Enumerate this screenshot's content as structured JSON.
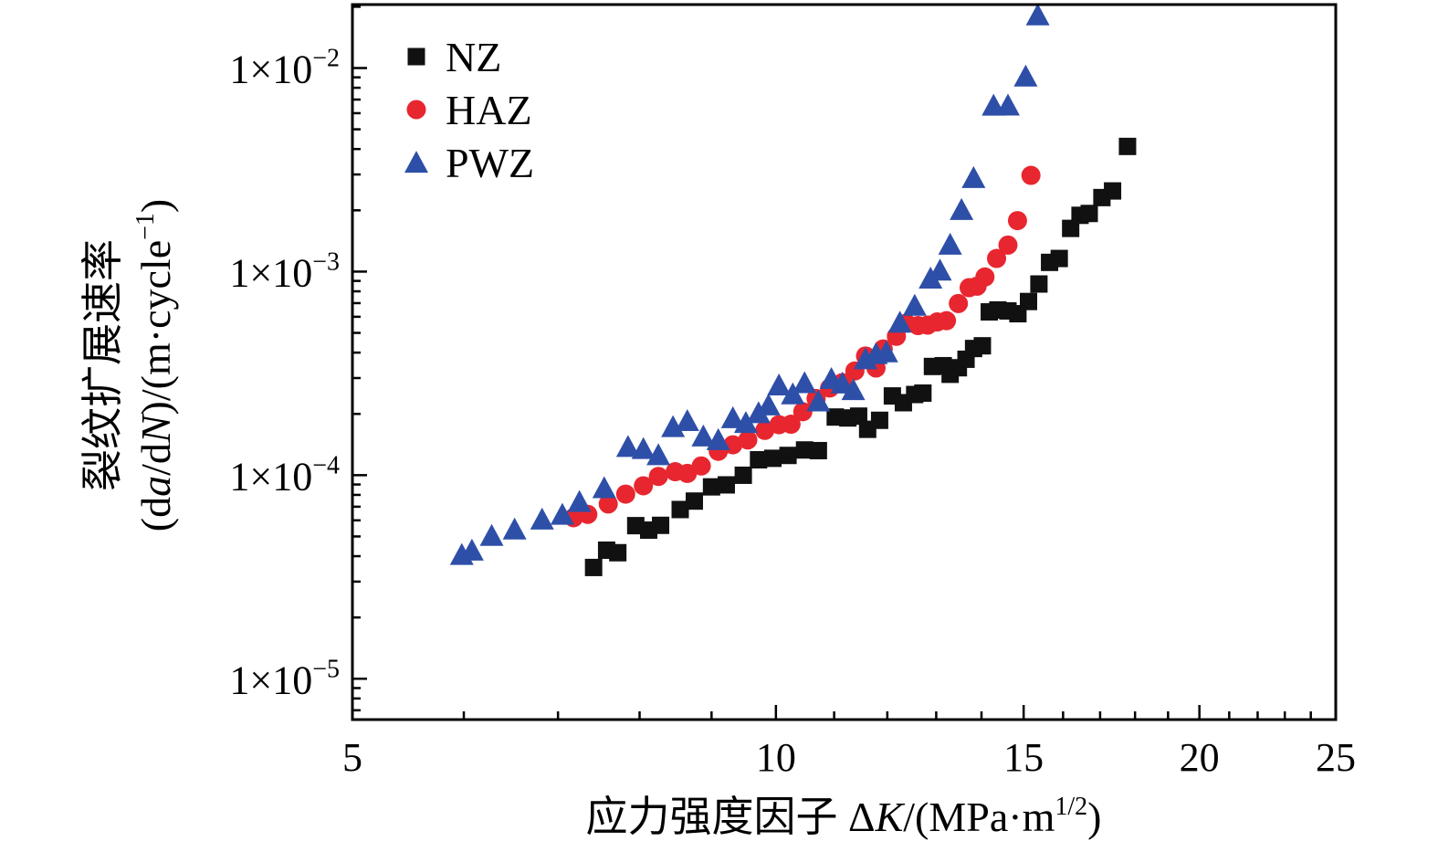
{
  "chart_data": {
    "type": "scatter",
    "title": "",
    "xlabel": "应力强度因子 ΔK/(MPa·m1/2)",
    "xlabel_parts": {
      "prefix": "应力强度因子 Δ",
      "var": "K",
      "unit_open": "/(MPa·m",
      "unit_sup": "1/2",
      "unit_close": ")"
    },
    "ylabel_line1": "裂纹扩展速率",
    "ylabel_line2_parts": {
      "a": "(d",
      "b": "a",
      "c": "/d",
      "d": "N",
      "e": ")/(m·cycle",
      "sup": "−1",
      "f": ")"
    },
    "x_scale": "log",
    "y_scale": "log",
    "xlim": [
      5,
      25
    ],
    "ylim": [
      6.3e-06,
      0.0205
    ],
    "x_ticks": [
      5,
      10,
      15,
      20,
      25
    ],
    "x_tick_labels": [
      "5",
      "10",
      "15",
      "20",
      "25"
    ],
    "y_ticks": [
      1e-05,
      0.0001,
      0.001,
      0.01
    ],
    "y_tick_labels": [
      {
        "mantissa": "1×10",
        "exp": "−5"
      },
      {
        "mantissa": "1×10",
        "exp": "−4"
      },
      {
        "mantissa": "1×10",
        "exp": "−3"
      },
      {
        "mantissa": "1×10",
        "exp": "−2"
      }
    ],
    "legend_position": "top-left",
    "series": [
      {
        "name": "NZ",
        "marker": "square",
        "color": "#111111",
        "points": [
          [
            7.42,
            3.52e-05
          ],
          [
            7.58,
            4.28e-05
          ],
          [
            7.72,
            4.16e-05
          ],
          [
            7.95,
            5.65e-05
          ],
          [
            8.12,
            5.37e-05
          ],
          [
            8.28,
            5.67e-05
          ],
          [
            8.55,
            6.78e-05
          ],
          [
            8.75,
            7.46e-05
          ],
          [
            9.0,
            8.76e-05
          ],
          [
            9.22,
            8.96e-05
          ],
          [
            9.48,
            9.99e-05
          ],
          [
            9.72,
            0.000119
          ],
          [
            9.95,
            0.000121
          ],
          [
            10.2,
            0.000125
          ],
          [
            10.48,
            0.000133
          ],
          [
            10.72,
            0.000132
          ],
          [
            11.02,
            0.000193
          ],
          [
            11.25,
            0.000191
          ],
          [
            11.45,
            0.000195
          ],
          [
            11.62,
            0.000168
          ],
          [
            11.85,
            0.000186
          ],
          [
            12.1,
            0.000245
          ],
          [
            12.32,
            0.000227
          ],
          [
            12.55,
            0.000249
          ],
          [
            12.72,
            0.000253
          ],
          [
            12.92,
            0.000342
          ],
          [
            13.15,
            0.000345
          ],
          [
            13.3,
            0.000313
          ],
          [
            13.48,
            0.000337
          ],
          [
            13.65,
            0.000371
          ],
          [
            13.82,
            0.000419
          ],
          [
            14.02,
            0.000432
          ],
          [
            14.18,
            0.000634
          ],
          [
            14.38,
            0.000648
          ],
          [
            14.62,
            0.000641
          ],
          [
            14.86,
            0.000621
          ],
          [
            15.12,
            0.000713
          ],
          [
            15.38,
            0.000869
          ],
          [
            15.65,
            0.00111
          ],
          [
            15.9,
            0.00116
          ],
          [
            16.2,
            0.00163
          ],
          [
            16.45,
            0.00189
          ],
          [
            16.7,
            0.00193
          ],
          [
            17.05,
            0.00231
          ],
          [
            17.35,
            0.00249
          ],
          [
            17.78,
            0.00412
          ]
        ]
      },
      {
        "name": "HAZ",
        "marker": "circle",
        "color": "#e8262f",
        "points": [
          [
            7.18,
            6.18e-05
          ],
          [
            7.35,
            6.42e-05
          ],
          [
            7.6,
            7.22e-05
          ],
          [
            7.82,
            8.07e-05
          ],
          [
            8.05,
            8.87e-05
          ],
          [
            8.25,
            9.86e-05
          ],
          [
            8.48,
            0.000104
          ],
          [
            8.65,
            0.000102
          ],
          [
            8.85,
            0.000111
          ],
          [
            9.1,
            0.000131
          ],
          [
            9.32,
            0.000141
          ],
          [
            9.55,
            0.000149
          ],
          [
            9.82,
            0.000166
          ],
          [
            10.05,
            0.000177
          ],
          [
            10.25,
            0.000178
          ],
          [
            10.45,
            0.000205
          ],
          [
            10.68,
            0.000238
          ],
          [
            10.92,
            0.000268
          ],
          [
            11.15,
            0.000285
          ],
          [
            11.38,
            0.000325
          ],
          [
            11.58,
            0.000385
          ],
          [
            11.78,
            0.000336
          ],
          [
            11.92,
            0.000417
          ],
          [
            12.18,
            0.000481
          ],
          [
            12.38,
            0.000558
          ],
          [
            12.62,
            0.000543
          ],
          [
            12.82,
            0.000546
          ],
          [
            13.02,
            0.000566
          ],
          [
            13.22,
            0.000574
          ],
          [
            13.48,
            0.000697
          ],
          [
            13.72,
            0.000834
          ],
          [
            13.9,
            0.000848
          ],
          [
            14.08,
            0.000941
          ],
          [
            14.35,
            0.00116
          ],
          [
            14.62,
            0.00135
          ],
          [
            14.85,
            0.00178
          ],
          [
            15.18,
            0.00297
          ]
        ]
      },
      {
        "name": "PWZ",
        "marker": "triangle",
        "color": "#2e4fa8",
        "points": [
          [
            5.98,
            3.98e-05
          ],
          [
            6.08,
            4.18e-05
          ],
          [
            6.28,
            4.94e-05
          ],
          [
            6.52,
            5.31e-05
          ],
          [
            6.82,
            5.94e-05
          ],
          [
            7.05,
            6.27e-05
          ],
          [
            7.25,
            7.25e-05
          ],
          [
            7.55,
            8.47e-05
          ],
          [
            7.85,
            0.000135
          ],
          [
            8.05,
            0.000132
          ],
          [
            8.25,
            0.000123
          ],
          [
            8.45,
            0.000169
          ],
          [
            8.65,
            0.000181
          ],
          [
            8.88,
            0.000152
          ],
          [
            9.1,
            0.000146
          ],
          [
            9.32,
            0.000187
          ],
          [
            9.52,
            0.000177
          ],
          [
            9.72,
            0.000198
          ],
          [
            9.88,
            0.000216
          ],
          [
            10.05,
            0.000271
          ],
          [
            10.28,
            0.000245
          ],
          [
            10.48,
            0.000278
          ],
          [
            10.72,
            0.000226
          ],
          [
            10.95,
            0.000291
          ],
          [
            11.15,
            0.000277
          ],
          [
            11.35,
            0.000257
          ],
          [
            11.58,
            0.000364
          ],
          [
            11.78,
            0.000386
          ],
          [
            11.98,
            0.000394
          ],
          [
            12.25,
            0.000551
          ],
          [
            12.55,
            0.000667
          ],
          [
            12.88,
            0.000907
          ],
          [
            13.08,
            0.000993
          ],
          [
            13.3,
            0.00133
          ],
          [
            13.55,
            0.00197
          ],
          [
            13.82,
            0.00283
          ],
          [
            14.28,
            0.00641
          ],
          [
            14.62,
            0.00642
          ],
          [
            15.05,
            0.00891
          ],
          [
            15.35,
            0.0178
          ]
        ]
      }
    ]
  }
}
